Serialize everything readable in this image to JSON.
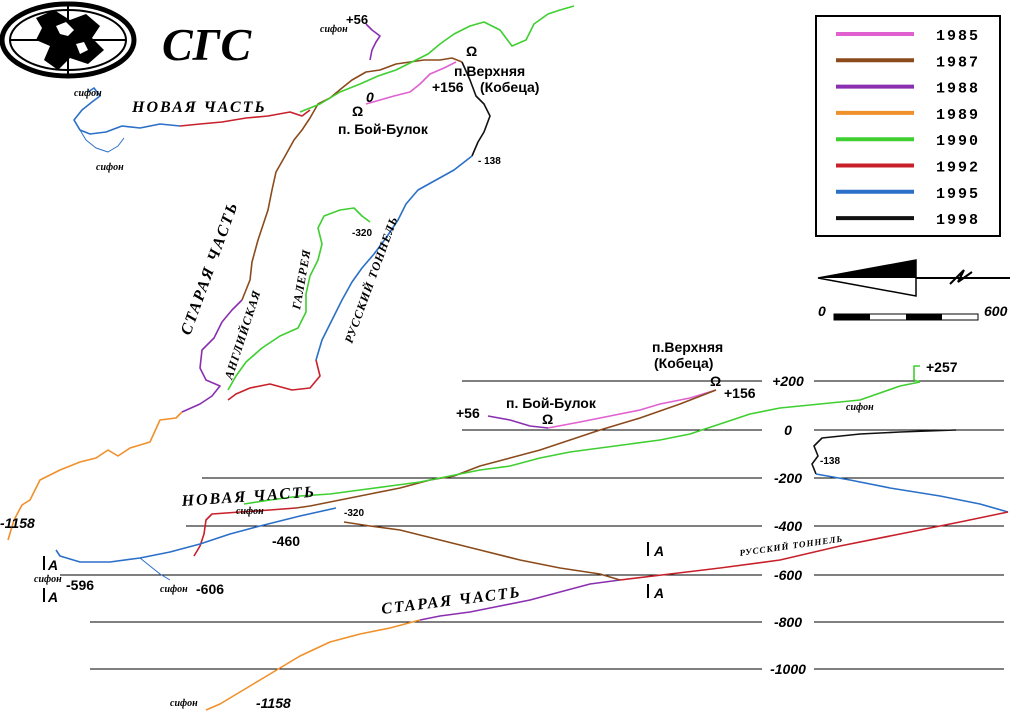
{
  "title": "СГС",
  "legend": [
    {
      "year": "1985",
      "color": "#e060d0"
    },
    {
      "year": "1987",
      "color": "#8b4a1c"
    },
    {
      "year": "1988",
      "color": "#8a2fb0"
    },
    {
      "year": "1989",
      "color": "#f0902a"
    },
    {
      "year": "1990",
      "color": "#3fcf30"
    },
    {
      "year": "1992",
      "color": "#c8202a"
    },
    {
      "year": "1995",
      "color": "#2a6fc8"
    },
    {
      "year": "1998",
      "color": "#111111"
    }
  ],
  "scale": {
    "zero": "0",
    "max": "600"
  },
  "plan": {
    "novaya": "НОВАЯ ЧАСТЬ",
    "staraya": "СТАРАЯ ЧАСТЬ",
    "angl": "АНГЛИЙСКАЯ",
    "galereya": "ГАЛЕРЕЯ",
    "russky": "РУССКИЙ ТОННЕЛЬ",
    "verkhnyaya": "п.Верхняя",
    "kobeca": "(Кобеца)",
    "boi": "п. Бой-Булок",
    "plus56": "+56",
    "plus156": "+156",
    "zero": "0",
    "m138": "- 138",
    "m320": "-320",
    "m1158": "-1158",
    "sifon1": "сифон",
    "sifon2": "сифон",
    "sifon3": "сифон",
    "omega": "Ω"
  },
  "section": {
    "verkhnyaya": "п.Верхняя",
    "kobeca": "(Кобеца)",
    "boi": "п. Бой-Булок",
    "plus56": "+56",
    "plus156": "+156",
    "plus257": "+257",
    "m138": "-138",
    "m320": "-320",
    "m460": "-460",
    "m596": "-596",
    "m606": "-606",
    "m1158": "-1158",
    "novaya": "НОВАЯ ЧАСТЬ",
    "staraya": "СТАРАЯ ЧАСТЬ",
    "russky": "РУССКИЙ ТОННЕЛЬ",
    "sifon": "сифон",
    "markA": "A",
    "depths": [
      "+200",
      "0",
      "-200",
      "-400",
      "-600",
      "-800",
      "-1000"
    ]
  }
}
